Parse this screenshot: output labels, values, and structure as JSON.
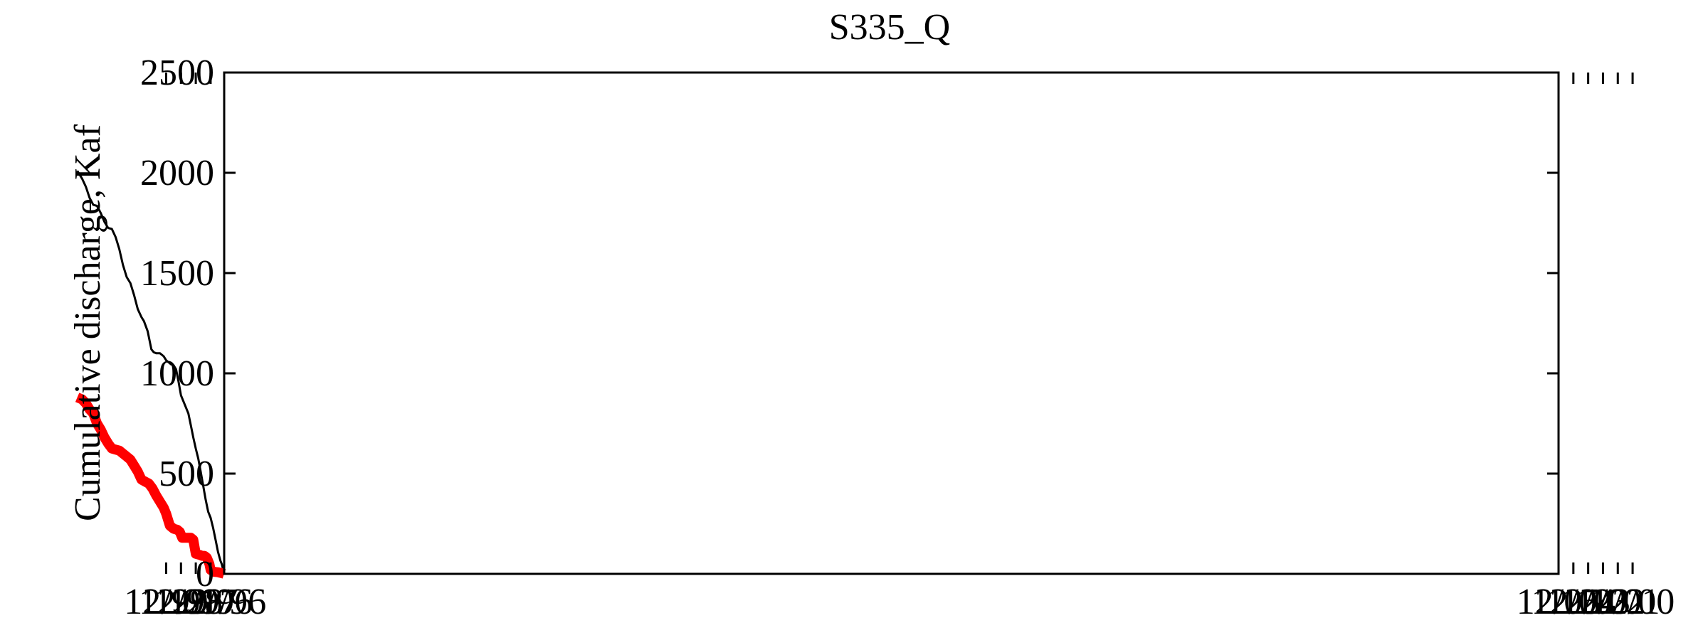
{
  "chart_data": {
    "type": "line",
    "title": "S335_Q",
    "xlabel": "",
    "ylabel": "Cumulative discharge, Kaf",
    "ylim": [
      0,
      2500
    ],
    "xlim": [
      "01/96",
      "12/05"
    ],
    "grid": false,
    "legend": "none",
    "x_tick_labels": [
      "01/96",
      "12/96",
      "12/97",
      "12/98",
      "12/99",
      "12/00",
      "12/01",
      "12/02",
      "12/03",
      "12/04",
      "12/05"
    ],
    "y_ticks": [
      0,
      500,
      1000,
      1500,
      2000,
      2500
    ],
    "series": [
      {
        "color": "#000000",
        "style": "thin",
        "x": [
          "1996-01",
          "1996-02",
          "1996-03",
          "1996-04",
          "1996-06",
          "1996-08",
          "1996-10",
          "1996-12",
          "1997-02",
          "1997-04",
          "1997-06",
          "1997-08",
          "1997-10",
          "1997-12",
          "1998-02",
          "1998-04",
          "1998-06",
          "1998-09",
          "1998-12",
          "1999-02",
          "1999-04",
          "1999-06",
          "1999-08",
          "1999-10",
          "1999-12",
          "2000-02",
          "2000-05",
          "2000-08",
          "2000-10",
          "2000-12",
          "2001-03",
          "2001-06",
          "2001-08",
          "2001-11",
          "2002-02",
          "2002-05",
          "2002-08",
          "2002-11",
          "2003-02",
          "2003-05",
          "2003-08",
          "2003-11",
          "2004-02",
          "2004-05",
          "2004-08",
          "2004-11",
          "2005-02",
          "2005-05",
          "2005-08",
          "2005-12"
        ],
        "values": [
          0,
          25,
          50,
          65,
          110,
          170,
          230,
          280,
          310,
          370,
          440,
          510,
          575,
          625,
          680,
          740,
          800,
          845,
          890,
          960,
          1020,
          1040,
          1045,
          1055,
          1065,
          1085,
          1100,
          1100,
          1105,
          1120,
          1210,
          1260,
          1280,
          1320,
          1390,
          1450,
          1480,
          1540,
          1620,
          1680,
          1720,
          1725,
          1755,
          1800,
          1835,
          1840,
          1875,
          1930,
          1970,
          2010
        ]
      },
      {
        "color": "#ff0000",
        "style": "thick",
        "x": [
          "1996-01",
          "1996-02",
          "1996-04",
          "1996-06",
          "1996-09",
          "1996-12",
          "1997-01",
          "1997-03",
          "1997-05",
          "1997-07",
          "1997-09",
          "1997-12",
          "1998-02",
          "1998-04",
          "1998-06",
          "1998-08",
          "1998-11",
          "1999-01",
          "1999-03",
          "1999-06",
          "1999-09",
          "1999-12",
          "2000-02",
          "2000-05",
          "2000-08",
          "2000-11",
          "2001-02",
          "2001-05",
          "2001-08",
          "2001-11",
          "2002-02",
          "2002-05",
          "2002-08",
          "2002-11",
          "2003-02",
          "2003-05",
          "2003-08",
          "2003-11",
          "2004-02",
          "2004-05",
          "2004-08",
          "2004-11",
          "2005-02",
          "2005-05",
          "2005-08",
          "2005-12"
        ],
        "values": [
          0,
          2,
          5,
          8,
          10,
          20,
          50,
          80,
          90,
          90,
          95,
          100,
          170,
          180,
          180,
          180,
          180,
          210,
          220,
          225,
          240,
          300,
          330,
          360,
          390,
          425,
          450,
          460,
          470,
          510,
          540,
          570,
          585,
          600,
          615,
          620,
          625,
          650,
          680,
          720,
          750,
          800,
          820,
          850,
          870,
          880
        ]
      }
    ]
  }
}
